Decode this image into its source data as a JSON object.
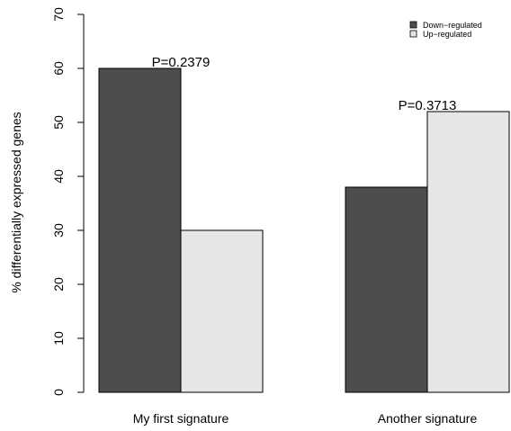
{
  "chart_data": {
    "type": "bar",
    "categories": [
      "My first signature",
      "Another signature"
    ],
    "series": [
      {
        "name": "Down−regulated",
        "values": [
          60,
          38
        ],
        "color": "#4d4d4d"
      },
      {
        "name": "Up−regulated",
        "values": [
          30,
          52
        ],
        "color": "#e6e6e6"
      }
    ],
    "annotations": [
      "P=0.2379",
      "P=0.3713"
    ],
    "ylabel": "% differentially expressed genes",
    "xlabel": "",
    "ylim": [
      0,
      70
    ],
    "yticks": [
      0,
      10,
      20,
      30,
      40,
      50,
      60,
      70
    ],
    "legend_position": "top-right",
    "grid": false
  }
}
